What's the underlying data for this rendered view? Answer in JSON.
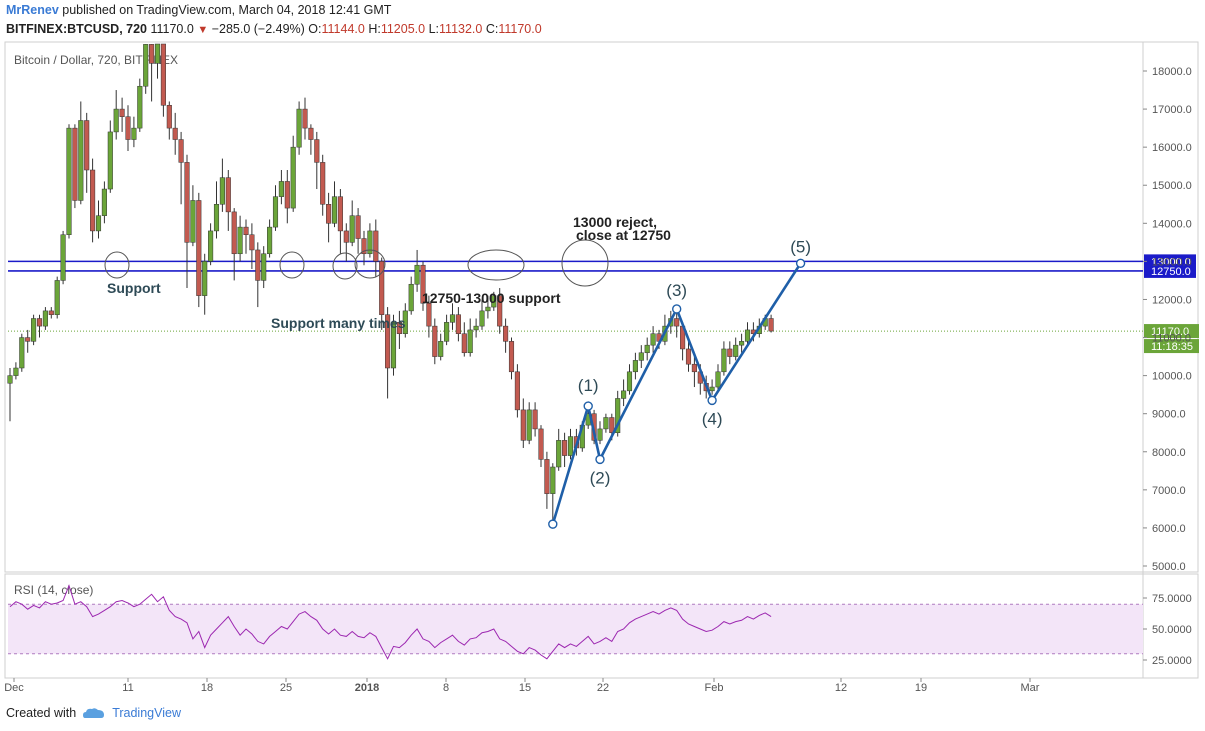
{
  "header": {
    "author": "MrRenev",
    "published": "published on TradingView.com, March 04, 2018 12:41 GMT",
    "symbol": "BITFINEX:BTCUSD, 720",
    "last": "11170.0",
    "change": "−285.0 (−2.49%)",
    "o_label": "O:",
    "open": "11144.0",
    "h_label": "H:",
    "high": "11205.0",
    "l_label": "L:",
    "low": "11132.0",
    "c_label": "C:",
    "close": "11170.0"
  },
  "footer": {
    "created_with": "Created with",
    "brand": "TradingView"
  },
  "chart_data": {
    "type": "candlestick",
    "title": "Bitcoin / Dollar, 720, BITFINEX",
    "colors": {
      "up": "#6ba539",
      "down": "#c25a50",
      "line": "#1f5fa8",
      "level": "#1b1bc9",
      "rsi": "#9c27b0",
      "rsi_band": "#f3e5f8"
    },
    "ylim": [
      4800,
      18600
    ],
    "y_ticks": [
      "18000.0",
      "17000.0",
      "16000.0",
      "15000.0",
      "14000.0",
      "13000.0",
      "12000.0",
      "11000.0",
      "10000.0",
      "9000.0",
      "8000.0",
      "7000.0",
      "6000.0",
      "5000.0"
    ],
    "x_ticks": [
      "Dec",
      "11",
      "18",
      "25",
      "2018",
      "8",
      "15",
      "22",
      "Feb",
      "12",
      "19",
      "Mar"
    ],
    "levels": [
      {
        "label": "13000.0",
        "value": 13000
      },
      {
        "label": "12750.0",
        "value": 12750
      }
    ],
    "last_price": {
      "label": "11170.0",
      "value": 11170
    },
    "countdown": "11:18:35",
    "candles": [
      [
        0,
        9800,
        10000,
        8800,
        10200
      ],
      [
        1,
        10000,
        10200,
        9900,
        10350
      ],
      [
        2,
        10200,
        11000,
        10100,
        11100
      ],
      [
        3,
        11000,
        10900,
        10600,
        11200
      ],
      [
        4,
        10900,
        11500,
        10800,
        11600
      ],
      [
        5,
        11500,
        11300,
        11000,
        11600
      ],
      [
        6,
        11300,
        11700,
        11200,
        11800
      ],
      [
        7,
        11700,
        11600,
        11500,
        11800
      ],
      [
        8,
        11600,
        12500,
        11500,
        12600
      ],
      [
        9,
        12500,
        13700,
        12400,
        13800
      ],
      [
        10,
        13700,
        16500,
        13600,
        16600
      ],
      [
        11,
        16500,
        14600,
        14400,
        16600
      ],
      [
        12,
        14600,
        16700,
        14500,
        17200
      ],
      [
        13,
        16700,
        15400,
        14800,
        16900
      ],
      [
        14,
        15400,
        13800,
        13500,
        15700
      ],
      [
        15,
        13800,
        14200,
        13600,
        14600
      ],
      [
        16,
        14200,
        14900,
        14000,
        15100
      ],
      [
        17,
        14900,
        16400,
        14800,
        16700
      ],
      [
        18,
        16400,
        17000,
        16200,
        17500
      ],
      [
        19,
        17000,
        16800,
        16400,
        17300
      ],
      [
        20,
        16800,
        16200,
        15900,
        17100
      ],
      [
        21,
        16200,
        16500,
        16000,
        16800
      ],
      [
        22,
        16500,
        17600,
        16400,
        17800
      ],
      [
        23,
        17600,
        18700,
        17400,
        18800
      ],
      [
        24,
        18700,
        18200,
        17200,
        19000
      ],
      [
        25,
        18200,
        18900,
        17800,
        19000
      ],
      [
        26,
        18900,
        17100,
        16800,
        19000
      ],
      [
        27,
        17100,
        16500,
        16200,
        17200
      ],
      [
        28,
        16500,
        16200,
        15800,
        16900
      ],
      [
        29,
        16200,
        15600,
        14500,
        16400
      ],
      [
        30,
        15600,
        13500,
        12300,
        15800
      ],
      [
        31,
        13500,
        14600,
        13400,
        15000
      ],
      [
        32,
        14600,
        12100,
        11800,
        14800
      ],
      [
        33,
        12100,
        13000,
        11600,
        13200
      ],
      [
        34,
        13000,
        13800,
        12900,
        14000
      ],
      [
        35,
        13800,
        14500,
        13600,
        15100
      ],
      [
        36,
        14500,
        15200,
        14300,
        15700
      ],
      [
        37,
        15200,
        14300,
        13800,
        15400
      ],
      [
        38,
        14300,
        13200,
        12500,
        14400
      ],
      [
        39,
        13200,
        13900,
        13000,
        14200
      ],
      [
        40,
        13900,
        13700,
        13200,
        14100
      ],
      [
        41,
        13700,
        13300,
        12800,
        14000
      ],
      [
        42,
        13300,
        12500,
        11800,
        13500
      ],
      [
        43,
        12500,
        13200,
        12300,
        13400
      ],
      [
        44,
        13200,
        13900,
        13100,
        14100
      ],
      [
        45,
        13900,
        14700,
        13800,
        15000
      ],
      [
        46,
        14700,
        15100,
        14500,
        15400
      ],
      [
        47,
        15100,
        14400,
        14000,
        15400
      ],
      [
        48,
        14400,
        16000,
        14300,
        16300
      ],
      [
        49,
        16000,
        17000,
        15800,
        17200
      ],
      [
        50,
        17000,
        16500,
        16200,
        17300
      ],
      [
        51,
        16500,
        16200,
        15800,
        16600
      ],
      [
        52,
        16200,
        15600,
        14900,
        16400
      ],
      [
        53,
        15600,
        14500,
        14200,
        15800
      ],
      [
        54,
        14500,
        14000,
        13500,
        14800
      ],
      [
        55,
        14000,
        14700,
        13900,
        15100
      ],
      [
        56,
        14700,
        13800,
        13200,
        14900
      ],
      [
        57,
        13800,
        13500,
        13000,
        14000
      ],
      [
        58,
        13500,
        14200,
        13400,
        14600
      ],
      [
        59,
        14200,
        13600,
        13200,
        14400
      ],
      [
        60,
        13600,
        13200,
        12900,
        13800
      ],
      [
        61,
        13200,
        13800,
        13100,
        14000
      ],
      [
        62,
        13800,
        13000,
        12600,
        14100
      ],
      [
        63,
        13000,
        11600,
        11200,
        13100
      ],
      [
        64,
        11600,
        10200,
        9400,
        11800
      ],
      [
        65,
        10200,
        11400,
        10000,
        11600
      ],
      [
        66,
        11400,
        11100,
        10700,
        11700
      ],
      [
        67,
        11100,
        11700,
        11000,
        11900
      ],
      [
        68,
        11700,
        12400,
        11600,
        12600
      ],
      [
        69,
        12400,
        12900,
        12200,
        13300
      ],
      [
        70,
        12900,
        11900,
        11700,
        13000
      ],
      [
        71,
        11900,
        11300,
        11000,
        12100
      ],
      [
        72,
        11300,
        10500,
        10300,
        11500
      ],
      [
        73,
        10500,
        10900,
        10400,
        11100
      ],
      [
        74,
        10900,
        11400,
        10800,
        11600
      ],
      [
        75,
        11400,
        11600,
        11200,
        11900
      ],
      [
        76,
        11600,
        11100,
        10900,
        11800
      ],
      [
        77,
        11100,
        10600,
        10500,
        11400
      ],
      [
        78,
        10600,
        11200,
        10500,
        11500
      ],
      [
        79,
        11200,
        11300,
        11000,
        11500
      ],
      [
        80,
        11300,
        11700,
        11200,
        12000
      ],
      [
        81,
        11700,
        11800,
        11500,
        12100
      ],
      [
        82,
        11800,
        12100,
        11700,
        12200
      ],
      [
        83,
        12100,
        11300,
        11100,
        12300
      ],
      [
        84,
        11300,
        10900,
        10600,
        11500
      ],
      [
        85,
        10900,
        10100,
        9900,
        11000
      ],
      [
        86,
        10100,
        9100,
        8900,
        10300
      ],
      [
        87,
        9100,
        8300,
        8100,
        9400
      ],
      [
        88,
        8300,
        9100,
        8200,
        9300
      ],
      [
        89,
        9100,
        8600,
        8400,
        9300
      ],
      [
        90,
        8600,
        7800,
        7600,
        8700
      ],
      [
        91,
        7800,
        6900,
        6500,
        8000
      ],
      [
        92,
        6900,
        7600,
        6100,
        7700
      ],
      [
        93,
        7600,
        8300,
        7500,
        8600
      ],
      [
        94,
        8300,
        7900,
        7600,
        8500
      ],
      [
        95,
        7900,
        8400,
        7800,
        8600
      ],
      [
        96,
        8400,
        8100,
        7900,
        8600
      ],
      [
        97,
        8100,
        8700,
        8000,
        8800
      ],
      [
        98,
        8700,
        9000,
        8600,
        9200
      ],
      [
        99,
        9000,
        8300,
        8200,
        9100
      ],
      [
        100,
        8300,
        8600,
        8200,
        8800
      ],
      [
        101,
        8600,
        8900,
        8500,
        9000
      ],
      [
        102,
        8900,
        8500,
        8300,
        9000
      ],
      [
        103,
        8500,
        9400,
        8400,
        9600
      ],
      [
        104,
        9400,
        9600,
        9200,
        9900
      ],
      [
        105,
        9600,
        10100,
        9500,
        10300
      ],
      [
        106,
        10100,
        10400,
        9900,
        10600
      ],
      [
        107,
        10400,
        10600,
        10200,
        10800
      ],
      [
        108,
        10600,
        10800,
        10400,
        11000
      ],
      [
        109,
        10800,
        11100,
        10600,
        11300
      ],
      [
        110,
        11100,
        10900,
        10700,
        11200
      ],
      [
        111,
        10900,
        11300,
        10800,
        11600
      ],
      [
        112,
        11300,
        11500,
        11100,
        11700
      ],
      [
        113,
        11500,
        11300,
        11000,
        11700
      ],
      [
        114,
        11300,
        10700,
        10400,
        11400
      ],
      [
        115,
        10700,
        10300,
        10100,
        10900
      ],
      [
        116,
        10300,
        10100,
        9700,
        10500
      ],
      [
        117,
        10100,
        9800,
        9500,
        10300
      ],
      [
        118,
        9800,
        9600,
        9400,
        10000
      ],
      [
        119,
        9600,
        9700,
        9500,
        9900
      ],
      [
        120,
        9700,
        10100,
        9600,
        10300
      ],
      [
        121,
        10100,
        10700,
        10000,
        10900
      ],
      [
        122,
        10700,
        10500,
        10300,
        10900
      ],
      [
        123,
        10500,
        10800,
        10400,
        11000
      ],
      [
        124,
        10800,
        10900,
        10600,
        11100
      ],
      [
        125,
        10900,
        11200,
        10800,
        11400
      ],
      [
        126,
        11200,
        11100,
        10900,
        11400
      ],
      [
        127,
        11100,
        11300,
        11000,
        11500
      ],
      [
        128,
        11300,
        11500,
        11200,
        11600
      ],
      [
        129,
        11500,
        11170,
        11132,
        11600
      ]
    ],
    "rsi": {
      "label": "RSI (14, close)",
      "y_ticks": [
        "75.0000",
        "50.0000",
        "25.0000"
      ],
      "band": [
        30,
        70
      ],
      "values": [
        68,
        72,
        70,
        66,
        69,
        67,
        72,
        70,
        71,
        73,
        85,
        70,
        72,
        68,
        60,
        62,
        65,
        68,
        72,
        73,
        71,
        68,
        70,
        74,
        78,
        72,
        76,
        65,
        60,
        58,
        55,
        42,
        48,
        35,
        45,
        50,
        55,
        60,
        52,
        45,
        50,
        46,
        40,
        38,
        44,
        48,
        52,
        50,
        56,
        62,
        64,
        60,
        57,
        50,
        46,
        50,
        45,
        44,
        48,
        44,
        43,
        47,
        44,
        35,
        26,
        36,
        35,
        39,
        45,
        50,
        42,
        40,
        35,
        39,
        42,
        45,
        40,
        37,
        42,
        43,
        47,
        48,
        50,
        42,
        40,
        36,
        32,
        30,
        35,
        33,
        29,
        26,
        32,
        38,
        35,
        38,
        36,
        40,
        44,
        38,
        40,
        43,
        40,
        48,
        50,
        55,
        58,
        60,
        62,
        64,
        62,
        65,
        67,
        65,
        58,
        54,
        52,
        50,
        48,
        49,
        52,
        56,
        54,
        56,
        57,
        60,
        58,
        61,
        63,
        60
      ]
    },
    "annotations": [
      {
        "text": "Support"
      },
      {
        "text": "Support many times"
      },
      {
        "text": "12750-13000 support"
      },
      {
        "text": "13000 reject,"
      },
      {
        "text": "close at 12750"
      }
    ],
    "waves": [
      {
        "label": "",
        "x": 92,
        "y": 6100
      },
      {
        "label": "(1)",
        "x": 98,
        "y": 9200
      },
      {
        "label": "(2)",
        "x": 100,
        "y": 7800
      },
      {
        "label": "(3)",
        "x": 113,
        "y": 11750
      },
      {
        "label": "(4)",
        "x": 119,
        "y": 9350
      },
      {
        "label": "(5)",
        "x": 134,
        "y": 12950
      }
    ]
  }
}
